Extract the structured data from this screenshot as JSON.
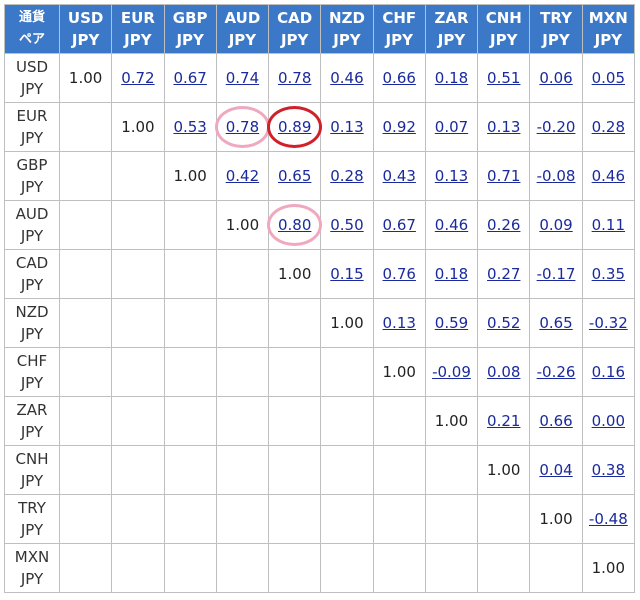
{
  "corner": [
    "通貨",
    "ペア"
  ],
  "currencies": [
    "USD",
    "EUR",
    "GBP",
    "AUD",
    "CAD",
    "NZD",
    "CHF",
    "ZAR",
    "CNH",
    "TRY",
    "MXN"
  ],
  "quote": "JPY",
  "rows": [
    [
      "1.00",
      "0.72",
      "0.67",
      "0.74",
      "0.78",
      "0.46",
      "0.66",
      "0.18",
      "0.51",
      "0.06",
      "0.05"
    ],
    [
      "",
      "1.00",
      "0.53",
      "0.78",
      "0.89",
      "0.13",
      "0.92",
      "0.07",
      "0.13",
      "-0.20",
      "0.28"
    ],
    [
      "",
      "",
      "1.00",
      "0.42",
      "0.65",
      "0.28",
      "0.43",
      "0.13",
      "0.71",
      "-0.08",
      "0.46"
    ],
    [
      "",
      "",
      "",
      "1.00",
      "0.80",
      "0.50",
      "0.67",
      "0.46",
      "0.26",
      "0.09",
      "0.11"
    ],
    [
      "",
      "",
      "",
      "",
      "1.00",
      "0.15",
      "0.76",
      "0.18",
      "0.27",
      "-0.17",
      "0.35"
    ],
    [
      "",
      "",
      "",
      "",
      "",
      "1.00",
      "0.13",
      "0.59",
      "0.52",
      "0.65",
      "-0.32"
    ],
    [
      "",
      "",
      "",
      "",
      "",
      "",
      "1.00",
      "-0.09",
      "0.08",
      "-0.26",
      "0.16"
    ],
    [
      "",
      "",
      "",
      "",
      "",
      "",
      "",
      "1.00",
      "0.21",
      "0.66",
      "0.00"
    ],
    [
      "",
      "",
      "",
      "",
      "",
      "",
      "",
      "",
      "1.00",
      "0.04",
      "0.38"
    ],
    [
      "",
      "",
      "",
      "",
      "",
      "",
      "",
      "",
      "",
      "1.00",
      "-0.48"
    ],
    [
      "",
      "",
      "",
      "",
      "",
      "",
      "",
      "",
      "",
      "",
      "1.00"
    ]
  ],
  "highlights": [
    {
      "row": 1,
      "col": 4,
      "color": "#d0202a",
      "style": "red"
    },
    {
      "row": 1,
      "col": 3,
      "color": "#f0a8be",
      "style": "pink"
    },
    {
      "row": 3,
      "col": 4,
      "color": "#f0a8be",
      "style": "pink"
    }
  ],
  "colors": {
    "header_bg": "#3c78c8",
    "link": "#1a2a9c",
    "border": "#bfbfbf"
  }
}
